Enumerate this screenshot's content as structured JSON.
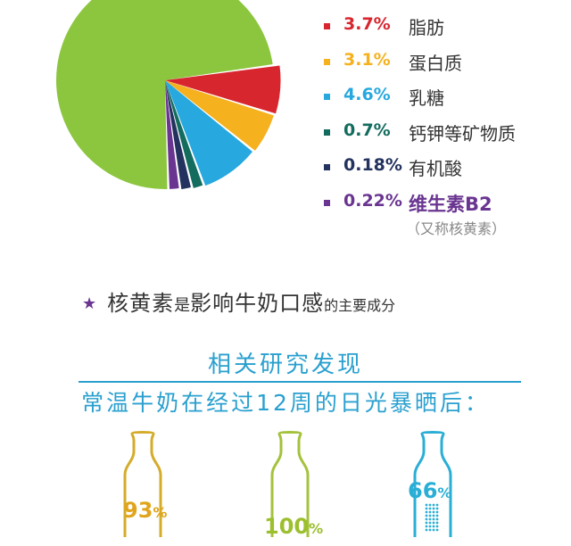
{
  "chart_data": {
    "type": "pie",
    "slices": [
      {
        "value": 87.4,
        "label": "",
        "color": "#8cc63f"
      },
      {
        "value": 3.7,
        "label": "脂肪",
        "display": "3.7%",
        "color": "#d8262f"
      },
      {
        "value": 3.1,
        "label": "蛋白质",
        "display": "3.1%",
        "color": "#f5b11e"
      },
      {
        "value": 4.6,
        "label": "乳糖",
        "display": "4.6%",
        "color": "#27a8df"
      },
      {
        "value": 0.7,
        "label": "钙钾等矿物质",
        "display": "0.7%",
        "color": "#136c5e"
      },
      {
        "value": 0.18,
        "label": "有机酸",
        "display": "0.18%",
        "color": "#23325e"
      },
      {
        "value": 0.22,
        "label": "维生素B2",
        "display": "0.22%",
        "color": "#6a3591"
      }
    ],
    "note": "（又称核黄素）"
  },
  "statement": {
    "part1": "核黄素",
    "part2": "是",
    "part3": "影响牛奶口感",
    "part4": "的主要成分"
  },
  "heading1": "相关研究发现",
  "heading2": "常温牛奶在经过12周的日光暴晒后：",
  "bottles": [
    {
      "number": "93",
      "unit": "%",
      "color": "#d4ac2a",
      "text_color": "#e0a51c"
    },
    {
      "number": "100",
      "unit": "%",
      "color": "#a4c23c",
      "text_color": "#9cbf2e"
    },
    {
      "number": "66",
      "unit": "%",
      "color": "#2aaed5",
      "text_color": "#2aaed5"
    }
  ]
}
